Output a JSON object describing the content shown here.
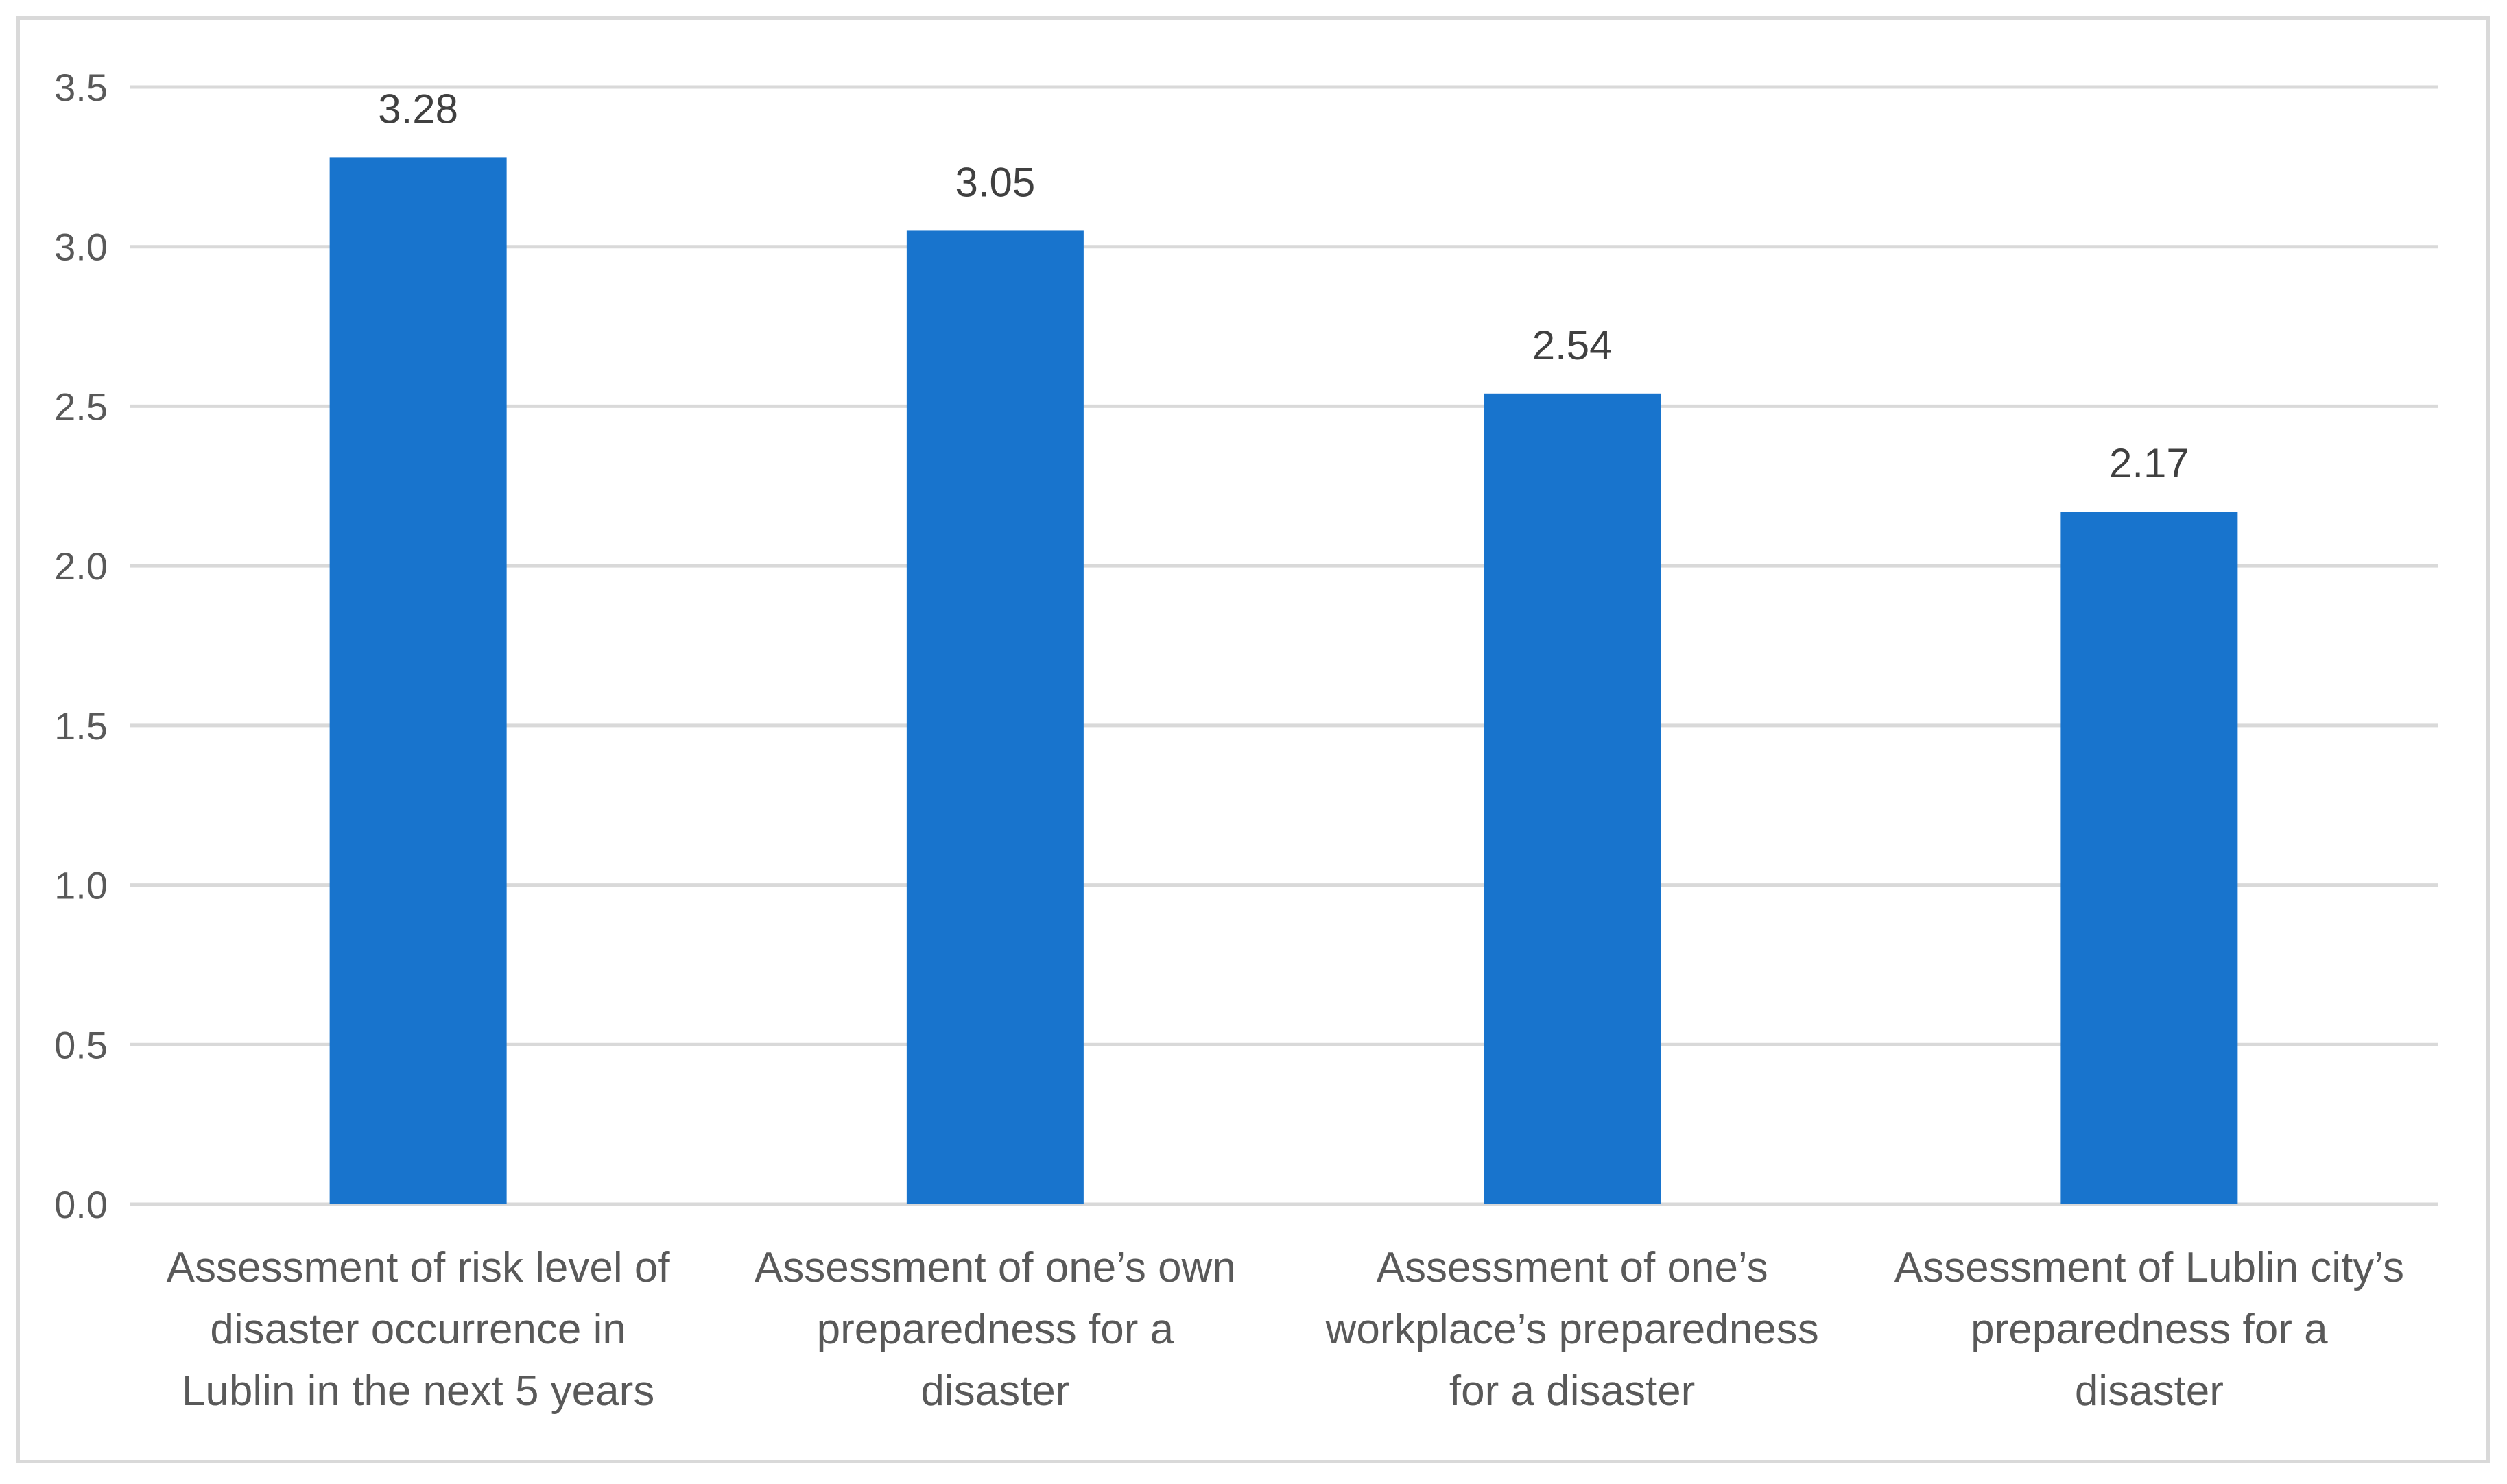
{
  "chart_data": {
    "type": "bar",
    "categories": [
      [
        "Assessment of risk level of",
        "disaster occurrence in",
        "Lublin in the next 5 years"
      ],
      [
        "Assessment of one’s own",
        "preparedness for a",
        "disaster"
      ],
      [
        "Assessment of one’s",
        "workplace’s preparedness",
        "for a disaster"
      ],
      [
        "Assessment of Lublin city’s",
        "preparedness for a",
        "disaster"
      ]
    ],
    "values": [
      3.28,
      3.05,
      2.54,
      2.17
    ],
    "value_labels": [
      "3.28",
      "3.05",
      "2.54",
      "2.17"
    ],
    "yticks": [
      "0.0",
      "0.5",
      "1.0",
      "1.5",
      "2.0",
      "2.5",
      "3.0",
      "3.5"
    ],
    "ylim": [
      0,
      3.5
    ],
    "title": "",
    "xlabel": "",
    "ylabel": "",
    "grid": true,
    "legend": "none",
    "colors": {
      "bar": "#1874CD",
      "grid": "#D9D9D9",
      "text": "#595959",
      "border": "#D9D9D9"
    }
  }
}
